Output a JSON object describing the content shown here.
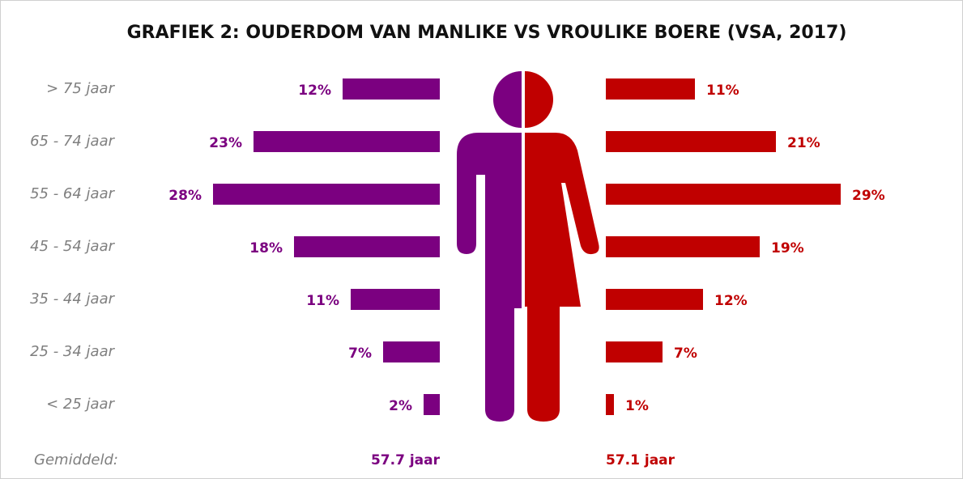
{
  "chart_data": {
    "type": "butterfly",
    "title": "GRAFIEK 2: OUDERDOM VAN MANLIKE VS VROULIKE BOERE (VSA, 2017)",
    "categories": [
      "> 75 jaar",
      "65 - 74 jaar",
      "55 - 64 jaar",
      "45 - 54 jaar",
      "35 - 44 jaar",
      "25 - 34 jaar",
      "< 25 jaar"
    ],
    "series": [
      {
        "color": "#7b0080",
        "values": [
          12,
          23,
          28,
          18,
          11,
          7,
          2
        ],
        "value_labels": [
          "12%",
          "23%",
          "28%",
          "18%",
          "11%",
          "7%",
          "2%"
        ]
      },
      {
        "color": "#c00000",
        "values": [
          11,
          21,
          29,
          19,
          12,
          7,
          1
        ],
        "value_labels": [
          "11%",
          "21%",
          "29%",
          "19%",
          "12%",
          "7%",
          "1%"
        ]
      }
    ],
    "annotations": [
      "Gemiddeld:",
      "57.7 jaar",
      "57.1 jaar"
    ]
  }
}
